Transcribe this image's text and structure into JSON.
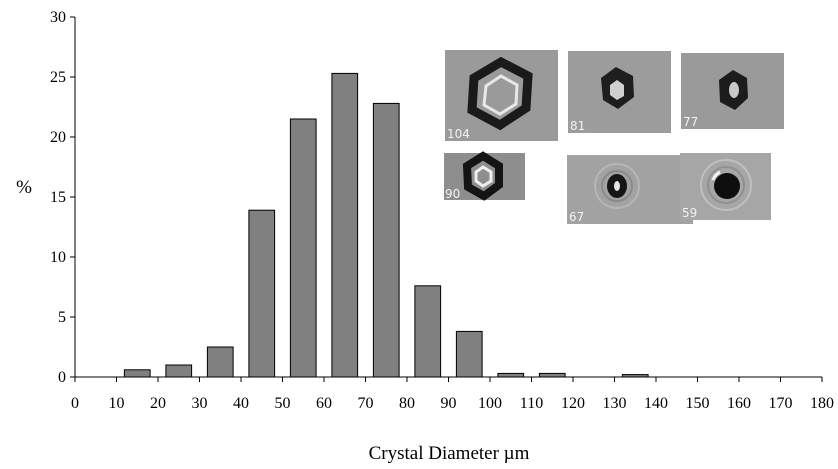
{
  "chart_data": {
    "type": "bar",
    "title": "",
    "xlabel": "Crystal Diameter µm",
    "ylabel": "%",
    "x_ticks": [
      "0",
      "10",
      "20",
      "30",
      "40",
      "50",
      "60",
      "70",
      "80",
      "90",
      "100",
      "110",
      "120",
      "130",
      "140",
      "150",
      "160",
      "170",
      "180"
    ],
    "y_ticks": [
      "0",
      "5",
      "10",
      "15",
      "20",
      "25",
      "30"
    ],
    "xlim": [
      0,
      180
    ],
    "ylim": [
      0,
      30
    ],
    "bin_width": 10,
    "bins": [
      10,
      20,
      30,
      40,
      50,
      60,
      70,
      80,
      90,
      100,
      110,
      120,
      130
    ],
    "values": [
      0.6,
      1.0,
      2.5,
      13.9,
      21.5,
      25.3,
      22.8,
      7.6,
      3.8,
      0.3,
      0.3,
      0.0,
      0.2
    ],
    "bar_color": "#808080",
    "grid": false,
    "legend": "none"
  },
  "insets": [
    {
      "label": "104"
    },
    {
      "label": "81"
    },
    {
      "label": "77"
    },
    {
      "label": "90"
    },
    {
      "label": "67"
    },
    {
      "label": "59"
    }
  ]
}
